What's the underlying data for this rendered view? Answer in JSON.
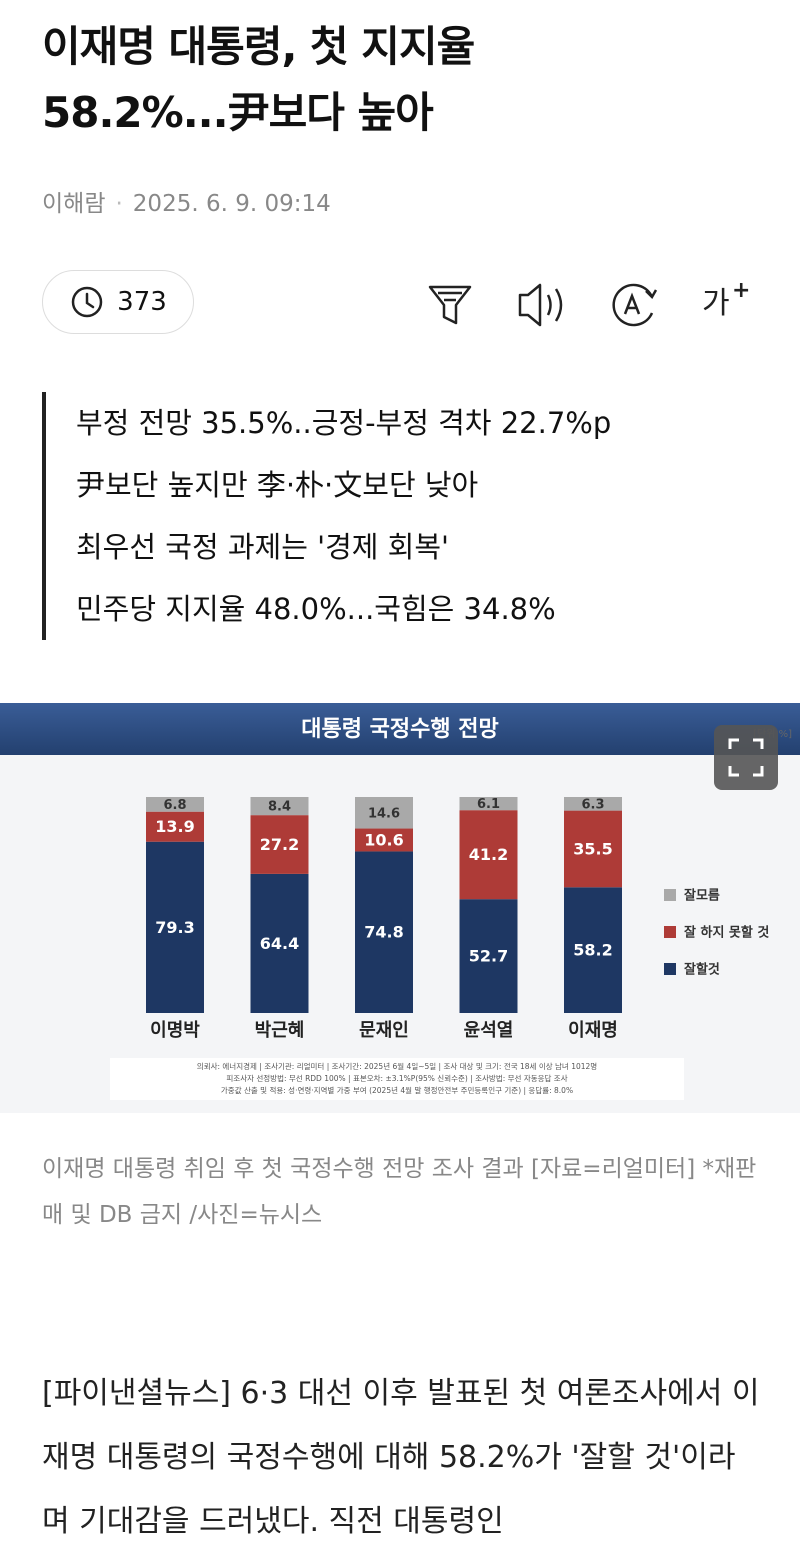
{
  "header": {
    "title_lines": [
      "이재명 대통령, 첫 지지율",
      "58.2%...尹보다 높아"
    ],
    "author": "이해람",
    "date": "2025. 6. 9. 09:14"
  },
  "toolbar": {
    "views": "373",
    "font_button": "가",
    "font_plus": "+"
  },
  "summary": [
    "부정 전망 35.5%..긍정-부정 격차 22.7%p",
    "尹보단 높지만 李·朴·文보단 낮아",
    "최우선 국정 과제는 '경제 회복'",
    "민주당 지지율 48.0%...국힘은 34.8%"
  ],
  "figure": {
    "chart": {
      "type": "stacked-bar",
      "title": "대통령 국정수행 전망",
      "unit": "[단위 %]",
      "categories": [
        "이명박",
        "박근혜",
        "문재인",
        "윤석열",
        "이재명"
      ],
      "series": [
        {
          "name": "잘할것",
          "color": "#1e3763",
          "values": [
            79.3,
            64.4,
            74.8,
            52.7,
            58.2
          ]
        },
        {
          "name": "잘 하지 못할 것",
          "color": "#ae3b37",
          "values": [
            13.9,
            27.2,
            10.6,
            41.2,
            35.5
          ]
        },
        {
          "name": "잘모름",
          "color": "#a9a9a9",
          "values": [
            6.8,
            8.4,
            14.6,
            6.1,
            6.3
          ]
        }
      ],
      "footnote": [
        "의뢰사: 에너지경제 | 조사기관: 리얼미터 | 조사기간: 2025년 6월 4일~5일 | 조사 대상 및 크기: 전국 18세 이상 남녀 1012명",
        "피조사자 선정방법: 무선 RDD 100% | 표본오차: ±3.1%P(95% 신뢰수준) | 조사방법: 무선 자동응답 조사",
        "가중값 산출 및 적용: 성·연령·지역별 가중 부여 (2025년 4월 말 행정안전부 주민등록인구 기준) | 응답률: 8.0%"
      ]
    },
    "caption": "이재명 대통령 취임 후 첫 국정수행 전망 조사 결과 [자료=리얼미터] *재판매 및 DB 금지 /사진=뉴시스"
  },
  "body": "[파이낸셜뉴스] 6·3 대선 이후 발표된 첫 여론조사에서 이재명 대통령의 국정수행에 대해 58.2%가 '잘할 것'이라며 기대감을 드러냈다. 직전 대통령인"
}
